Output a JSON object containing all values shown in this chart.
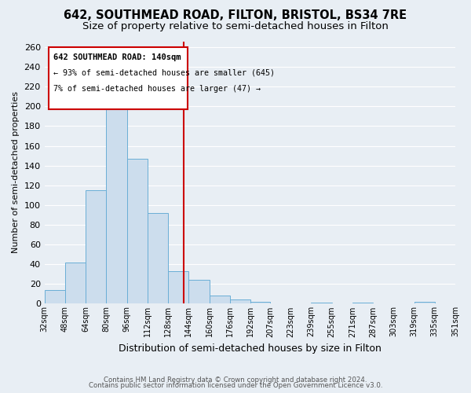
{
  "title1": "642, SOUTHMEAD ROAD, FILTON, BRISTOL, BS34 7RE",
  "title2": "Size of property relative to semi-detached houses in Filton",
  "xlabel": "Distribution of semi-detached houses by size in Filton",
  "ylabel": "Number of semi-detached properties",
  "bin_labels": [
    "32sqm",
    "48sqm",
    "64sqm",
    "80sqm",
    "96sqm",
    "112sqm",
    "128sqm",
    "144sqm",
    "160sqm",
    "176sqm",
    "192sqm",
    "207sqm",
    "223sqm",
    "239sqm",
    "255sqm",
    "271sqm",
    "287sqm",
    "303sqm",
    "319sqm",
    "335sqm",
    "351sqm"
  ],
  "bar_heights": [
    14,
    42,
    115,
    216,
    147,
    92,
    33,
    24,
    8,
    4,
    2,
    0,
    0,
    1,
    0,
    1,
    0,
    0,
    2,
    0
  ],
  "bin_edges": [
    32,
    48,
    64,
    80,
    96,
    112,
    128,
    144,
    160,
    176,
    192,
    207,
    223,
    239,
    255,
    271,
    287,
    303,
    319,
    335,
    351
  ],
  "property_line_x": 140,
  "bar_fill_color": "#ccdded",
  "bar_edge_color": "#6aaed6",
  "vline_color": "#cc0000",
  "box_edge_color": "#cc0000",
  "box_fill_color": "#ffffff",
  "annotation_line1": "642 SOUTHMEAD ROAD: 140sqm",
  "annotation_line2": "← 93% of semi-detached houses are smaller (645)",
  "annotation_line3": "7% of semi-detached houses are larger (47) →",
  "ylim": [
    0,
    266
  ],
  "yticks": [
    0,
    20,
    40,
    60,
    80,
    100,
    120,
    140,
    160,
    180,
    200,
    220,
    240,
    260
  ],
  "footer_line1": "Contains HM Land Registry data © Crown copyright and database right 2024.",
  "footer_line2": "Contains public sector information licensed under the Open Government Licence v3.0.",
  "bg_color": "#e8eef4",
  "grid_color": "#ffffff",
  "title_fontsize": 10.5,
  "subtitle_fontsize": 9.5
}
